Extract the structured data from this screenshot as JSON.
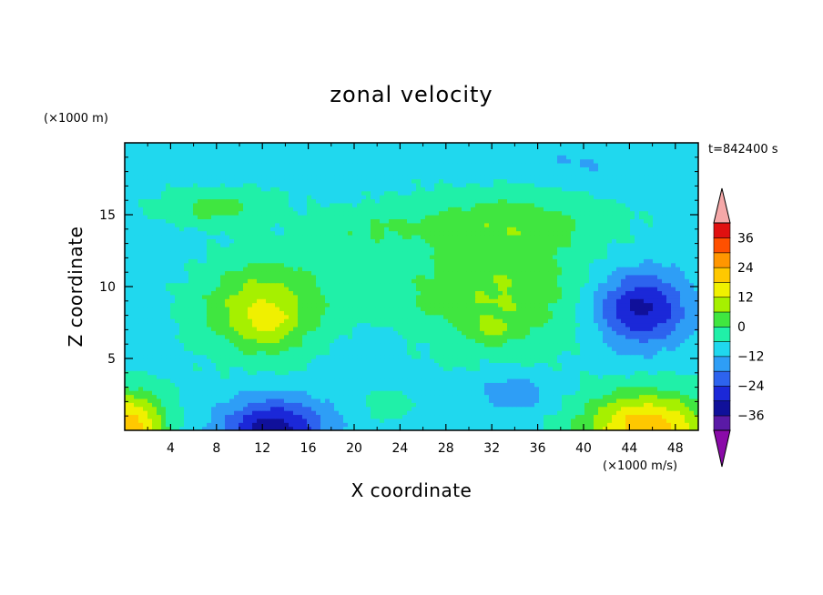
{
  "chart_data": {
    "type": "heatmap",
    "title": "zonal velocity",
    "xlabel": "X coordinate",
    "ylabel": "Z coordinate",
    "y_units": "(×1000 m)",
    "colorbar_units": "(×1000 m/s)",
    "time_label": "t=842400 s",
    "xlim": [
      0,
      50
    ],
    "ylim": [
      0,
      20
    ],
    "x_ticks": [
      "4",
      "8",
      "12",
      "16",
      "20",
      "24",
      "28",
      "32",
      "36",
      "40",
      "44",
      "48"
    ],
    "y_ticks": [
      "5",
      "10",
      "15"
    ],
    "colorbar": {
      "levels": [
        -42,
        -36,
        -30,
        -24,
        -18,
        -12,
        -6,
        0,
        6,
        12,
        18,
        24,
        30,
        36,
        42
      ],
      "labels": [
        "-36",
        "-24",
        "-12",
        "0",
        "12",
        "24",
        "36"
      ],
      "colors": [
        "#5a1aa6",
        "#10109a",
        "#1b28d8",
        "#2d63ee",
        "#2e9ef6",
        "#20d8ee",
        "#20f0a8",
        "#40e640",
        "#a6f000",
        "#f0f000",
        "#ffc800",
        "#ff9600",
        "#ff5000",
        "#e01010"
      ],
      "under_color": "#8a0aa8",
      "over_color": "#f5a8a8"
    },
    "contour_features": [
      {
        "x": 12.5,
        "z": 7.5,
        "value": 17,
        "description": ""
      },
      {
        "x": 11.5,
        "z": 8.5,
        "value": 13,
        "description": ""
      },
      {
        "x": 32,
        "z": 7,
        "value": 14,
        "description": ""
      },
      {
        "x": 13,
        "z": 0.5,
        "value": -27,
        "description": ""
      },
      {
        "x": 45,
        "z": 8.5,
        "value": -25,
        "description": ""
      },
      {
        "x": 33,
        "z": 3,
        "value": -16,
        "description": ""
      },
      {
        "x": 1,
        "z": 0.5,
        "value": 18,
        "description": ""
      },
      {
        "x": 46,
        "z": 0.5,
        "value": 20,
        "description": ""
      },
      {
        "x": 40,
        "z": 18,
        "value": -8,
        "description": ""
      }
    ]
  }
}
